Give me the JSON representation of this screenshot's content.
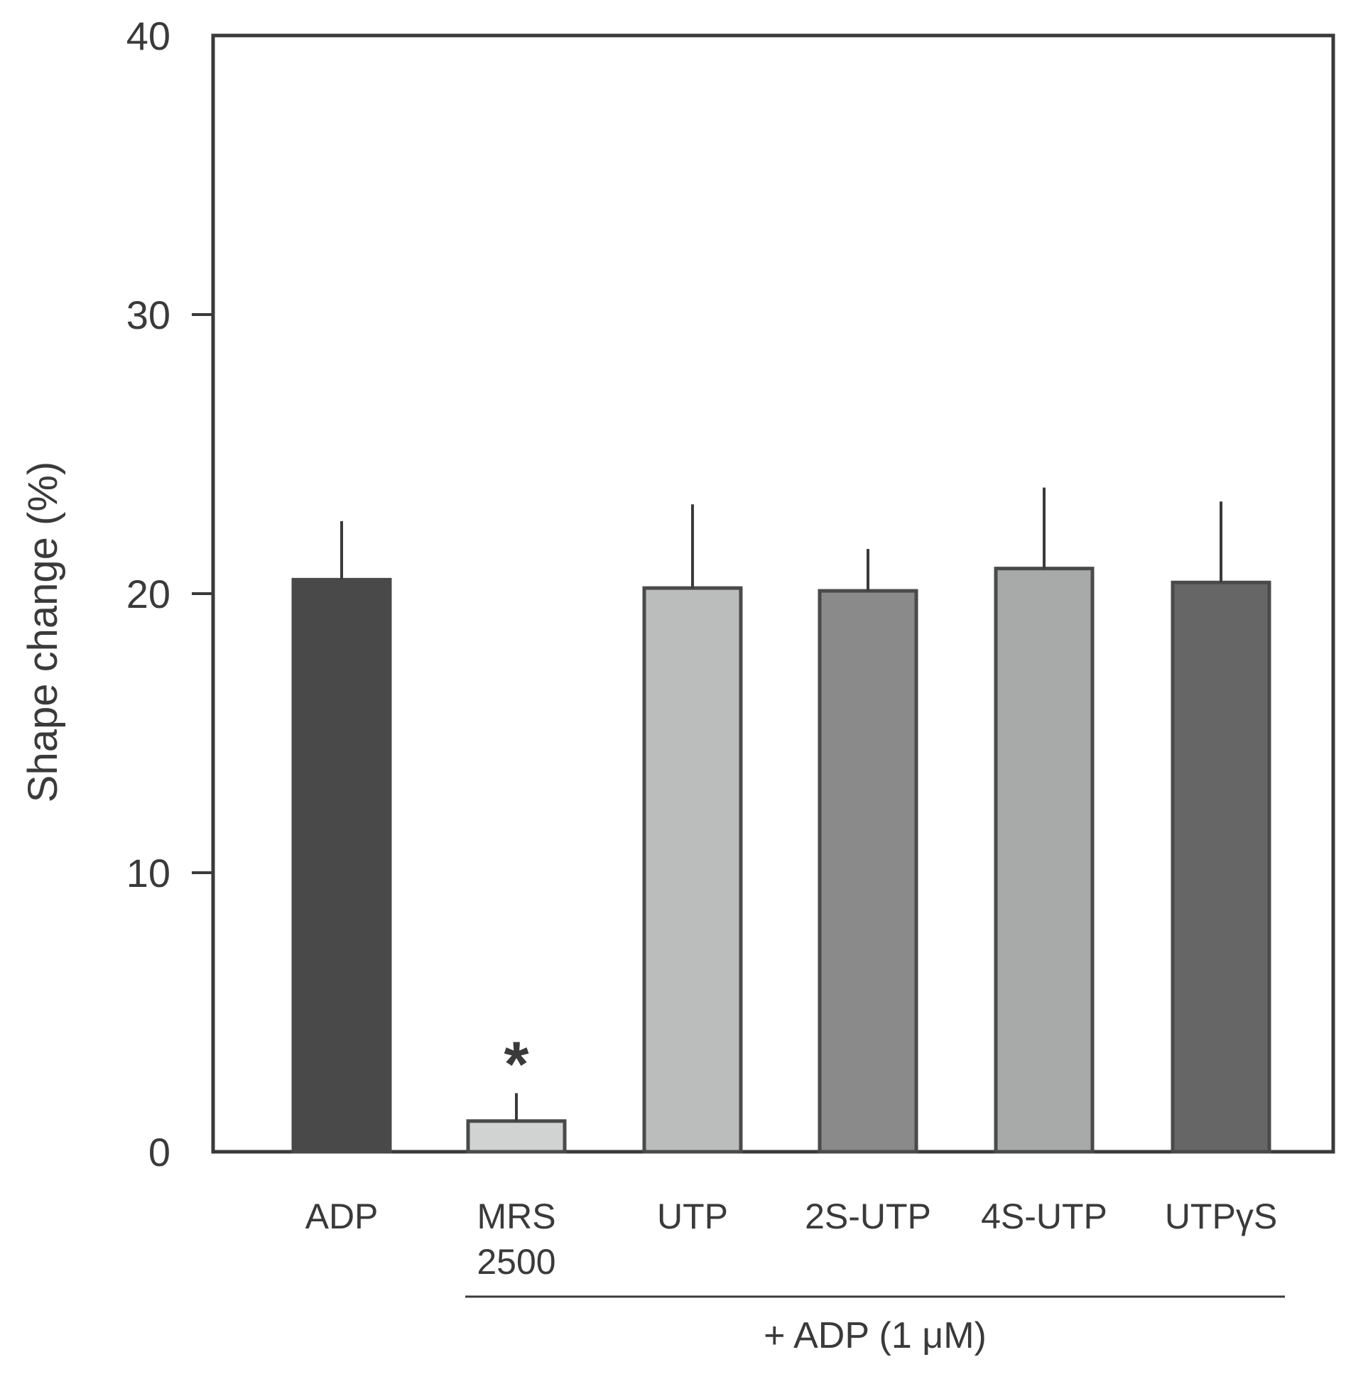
{
  "chart_data": {
    "type": "bar",
    "title": "",
    "xlabel": "",
    "ylabel": "Shape change (%)",
    "ylim": [
      0,
      40
    ],
    "yticks": [
      0,
      10,
      20,
      30,
      40
    ],
    "categories": [
      {
        "lines": [
          "ADP"
        ]
      },
      {
        "lines": [
          "MRS",
          "2500"
        ]
      },
      {
        "lines": [
          "UTP"
        ]
      },
      {
        "lines": [
          "2S-UTP"
        ]
      },
      {
        "lines": [
          "4S-UTP"
        ]
      },
      {
        "lines": [
          "UTPγS"
        ]
      }
    ],
    "values": [
      20.5,
      1.1,
      20.2,
      20.1,
      20.9,
      20.4
    ],
    "errors": [
      2.1,
      1.0,
      3.0,
      1.5,
      2.9,
      2.9
    ],
    "colors": [
      "#4a494a",
      "#d1d2d2",
      "#bbbcbc",
      "#8a8a8a",
      "#a8a9a9",
      "#666666"
    ],
    "outline": [
      "#4a494a",
      "#4a4a4a",
      "#4a4a4a",
      "#4a4a4a",
      "#4a4a4a",
      "#4a4a4a"
    ],
    "annotations": [
      {
        "category_index": 1,
        "text": "*"
      }
    ],
    "group_label": {
      "text": "+ ADP (1 μM)",
      "from_category": 1,
      "to_category": 5
    },
    "grid": false,
    "legend": "none"
  }
}
